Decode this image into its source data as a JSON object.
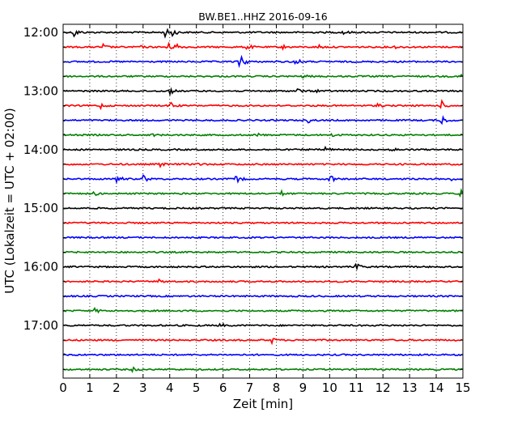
{
  "chart_data": {
    "type": "line",
    "title": "BW.BE1..HHZ 2016-09-16",
    "xlabel": "Zeit  [min]",
    "ylabel": "UTC (Lokalzeit = UTC + 02:00)",
    "xlim": [
      0,
      15
    ],
    "x_ticks": [
      "0",
      "1",
      "2",
      "3",
      "4",
      "5",
      "6",
      "7",
      "8",
      "9",
      "10",
      "11",
      "12",
      "13",
      "14",
      "15"
    ],
    "row_start_times": [
      "12:00",
      "12:15",
      "12:30",
      "12:45",
      "13:00",
      "13:15",
      "13:30",
      "13:45",
      "14:00",
      "14:15",
      "14:30",
      "14:45",
      "15:00",
      "15:15",
      "15:30",
      "15:45",
      "16:00",
      "16:15",
      "16:30",
      "16:45",
      "17:00",
      "17:15",
      "17:30",
      "17:45"
    ],
    "y_tick_labels": [
      "12:00",
      "13:00",
      "14:00",
      "15:00",
      "16:00",
      "17:00"
    ],
    "grid_x": true,
    "series_colors": [
      "#000000",
      "#ff0000",
      "#0000ff",
      "#008000"
    ],
    "events": [
      {
        "row": 0,
        "minutes": [
          0.4,
          3.8,
          4.1,
          10.5
        ],
        "amplitude": [
          1,
          1,
          0.8,
          0.5
        ]
      },
      {
        "row": 1,
        "minutes": [
          1.5,
          2.8,
          3.9,
          4.2,
          6.9,
          8.2,
          9.6,
          12.4
        ],
        "amplitude": [
          0.5,
          0.4,
          0.9,
          1,
          0.7,
          0.5,
          0.4,
          0.3
        ]
      },
      {
        "row": 2,
        "minutes": [
          6.6,
          6.7,
          8.7
        ],
        "amplitude": [
          0.8,
          1,
          0.9
        ]
      },
      {
        "row": 3,
        "minutes": [
          9.0,
          14.9
        ],
        "amplitude": [
          0.3,
          0.4
        ]
      },
      {
        "row": 4,
        "minutes": [
          4.0,
          8.8,
          9.5
        ],
        "amplitude": [
          0.6,
          0.4,
          0.3
        ]
      },
      {
        "row": 5,
        "minutes": [
          1.4,
          4.0,
          11.8,
          14.2
        ],
        "amplitude": [
          0.5,
          0.9,
          0.5,
          0.8
        ]
      },
      {
        "row": 6,
        "minutes": [
          9.2,
          14.2
        ],
        "amplitude": [
          0.4,
          1
        ]
      },
      {
        "row": 7,
        "minutes": [
          3.3,
          7.3,
          10.1
        ],
        "amplitude": [
          0.3,
          0.3,
          0.3
        ]
      },
      {
        "row": 8,
        "minutes": [
          9.8,
          12.3
        ],
        "amplitude": [
          0.7,
          0.6
        ]
      },
      {
        "row": 9,
        "minutes": [
          3.6,
          5.0
        ],
        "amplitude": [
          0.6,
          0.3
        ]
      },
      {
        "row": 10,
        "minutes": [
          2.0,
          3.0,
          6.5,
          10.0,
          14.6
        ],
        "amplitude": [
          1,
          0.8,
          0.9,
          1,
          0.5
        ]
      },
      {
        "row": 11,
        "minutes": [
          1.1,
          8.2,
          14.9
        ],
        "amplitude": [
          0.6,
          0.4,
          0.7
        ]
      },
      {
        "row": 12,
        "minutes": [],
        "amplitude": []
      },
      {
        "row": 13,
        "minutes": [],
        "amplitude": []
      },
      {
        "row": 14,
        "minutes": [],
        "amplitude": []
      },
      {
        "row": 15,
        "minutes": [],
        "amplitude": []
      },
      {
        "row": 16,
        "minutes": [
          11.0
        ],
        "amplitude": [
          0.8
        ]
      },
      {
        "row": 17,
        "minutes": [
          3.6
        ],
        "amplitude": [
          0.3
        ]
      },
      {
        "row": 18,
        "minutes": [],
        "amplitude": []
      },
      {
        "row": 19,
        "minutes": [
          1.2
        ],
        "amplitude": [
          0.5
        ]
      },
      {
        "row": 20,
        "minutes": [
          5.9
        ],
        "amplitude": [
          0.4
        ]
      },
      {
        "row": 21,
        "minutes": [
          7.8
        ],
        "amplitude": [
          0.6
        ]
      },
      {
        "row": 22,
        "minutes": [],
        "amplitude": []
      },
      {
        "row": 23,
        "minutes": [
          2.6
        ],
        "amplitude": [
          0.4
        ]
      }
    ]
  }
}
